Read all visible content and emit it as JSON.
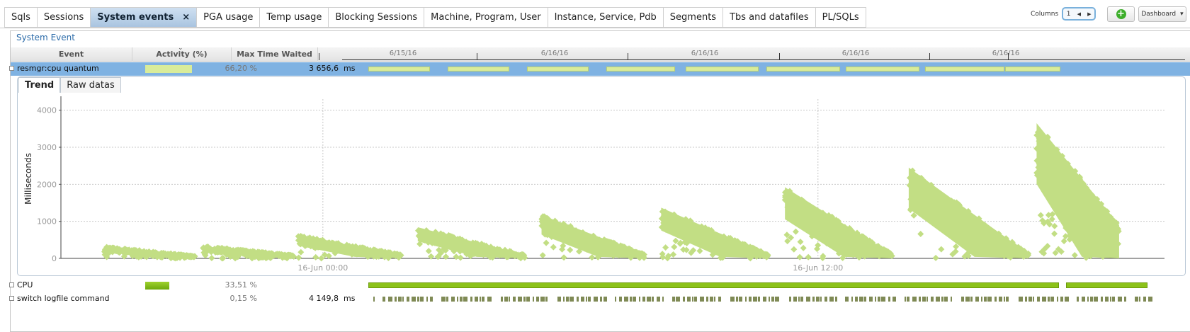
{
  "tabs": [
    {
      "label": "Sqls",
      "active": false
    },
    {
      "label": "Sessions",
      "active": false
    },
    {
      "label": "System events",
      "active": true
    },
    {
      "label": "PGA usage",
      "active": false
    },
    {
      "label": "Temp usage",
      "active": false
    },
    {
      "label": "Blocking Sessions",
      "active": false
    },
    {
      "label": "Machine, Program, User",
      "active": false
    },
    {
      "label": "Instance, Service, Pdb",
      "active": false
    },
    {
      "label": "Segments",
      "active": false
    },
    {
      "label": "Tbs and datafiles",
      "active": false
    },
    {
      "label": "PL/SQLs",
      "active": false
    }
  ],
  "tab_close_glyph": "×",
  "toolbar": {
    "columns_label": "Columns",
    "columns_value": "1",
    "prev_glyph": "◀",
    "next_glyph": "▶",
    "add_glyph": "+",
    "dashboard_label": "Dashboard",
    "dashboard_arrow": "▾"
  },
  "panel": {
    "title": "System Event"
  },
  "grid": {
    "headers": {
      "event": "Event",
      "activity": "Activity (%)",
      "max_time": "Max Time Waited"
    },
    "sort_indicator": "⌄",
    "timeline_labels": [
      "6/15/16",
      "6/16/16",
      "6/16/16",
      "6/16/16",
      "6/16/16"
    ],
    "rows": [
      {
        "name": "resmgr:cpu quantum",
        "activity": 66.2,
        "pct": "66,20 %",
        "max_time": "3 656,6",
        "unit": "ms",
        "selected": true,
        "bar_style": "segments"
      },
      {
        "name": "CPU",
        "activity": 33.51,
        "pct": "33,51 %",
        "max_time": "",
        "unit": "",
        "selected": false,
        "bar_style": "solid"
      },
      {
        "name": "switch logfile command",
        "activity": 0.15,
        "pct": "0,15 %",
        "max_time": "4 149,8",
        "unit": "ms",
        "selected": false,
        "bar_style": "dashed"
      }
    ]
  },
  "detail_tabs": [
    {
      "label": "Trend",
      "active": true
    },
    {
      "label": "Raw datas",
      "active": false
    }
  ],
  "colors": {
    "accent": "#2a6aa8",
    "chart_green": "#c2de84",
    "cpu_green": "#8cc21a",
    "selection": "#7fb2e2",
    "dark_olive": "#7f8a55"
  },
  "chart_data": {
    "type": "scatter",
    "title": "",
    "xlabel": "",
    "ylabel": "Milliseconds",
    "ylim": [
      0,
      4300
    ],
    "yticks": [
      0,
      1000,
      2000,
      3000,
      4000
    ],
    "xlim": [
      -6.35,
      20.4
    ],
    "xticks": [
      {
        "label": "16-Jun 00:00",
        "value": 0
      },
      {
        "label": "16-Jun 12:00",
        "value": 12
      }
    ],
    "clusters": [
      {
        "x_start": -5.3,
        "x_end": -3.1,
        "y_start": 320,
        "y_end": 60
      },
      {
        "x_start": -2.9,
        "x_end": -0.7,
        "y_start": 330,
        "y_end": 80
      },
      {
        "x_start": -0.6,
        "x_end": 1.9,
        "y_start": 620,
        "y_end": 100
      },
      {
        "x_start": 2.3,
        "x_end": 4.9,
        "y_start": 840,
        "y_end": 90
      },
      {
        "x_start": 5.3,
        "x_end": 7.8,
        "y_start": 1170,
        "y_end": 110
      },
      {
        "x_start": 8.2,
        "x_end": 10.8,
        "y_start": 1370,
        "y_end": 100
      },
      {
        "x_start": 11.2,
        "x_end": 13.8,
        "y_start": 1920,
        "y_end": 110
      },
      {
        "x_start": 14.2,
        "x_end": 17.1,
        "y_start": 2450,
        "y_end": 130
      },
      {
        "x_start": 17.3,
        "x_end": 19.3,
        "y_start": 3650,
        "y_end": 900
      }
    ]
  }
}
